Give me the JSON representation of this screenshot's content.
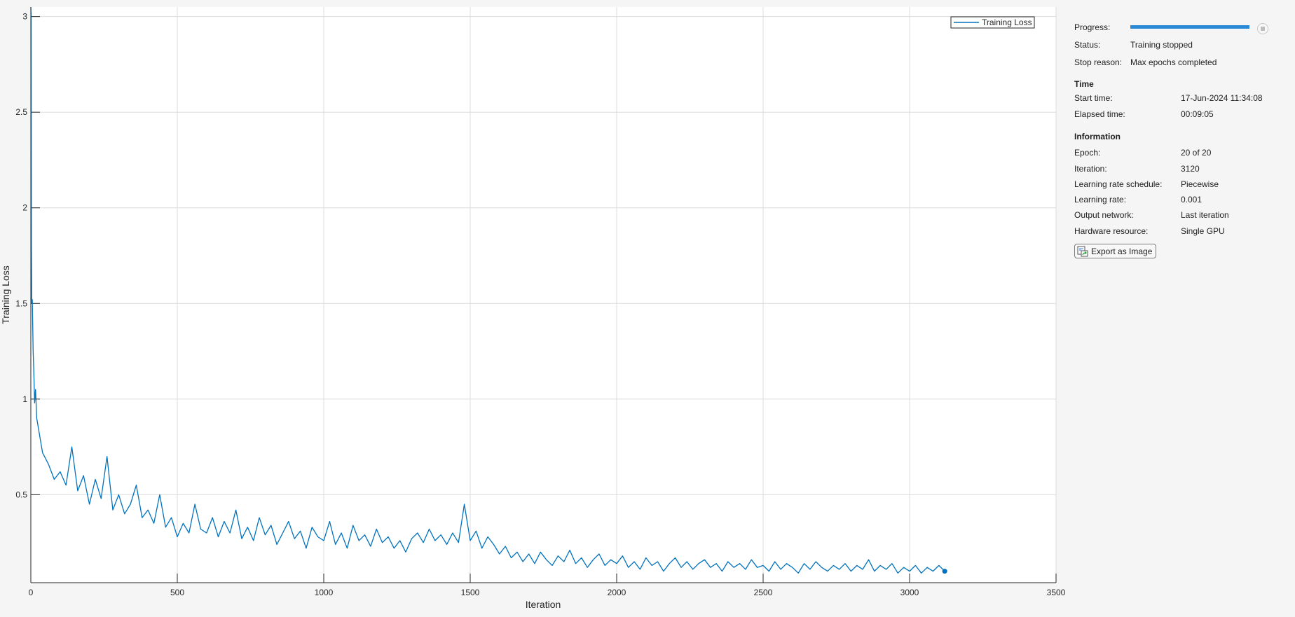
{
  "chart_data": {
    "type": "line",
    "xlabel": "Iteration",
    "ylabel": "Training Loss",
    "xlim": [
      0,
      3500
    ],
    "ylim": [
      0.04,
      3.05
    ],
    "xticks": [
      0,
      500,
      1000,
      1500,
      2000,
      2500,
      3000,
      3500
    ],
    "yticks": [
      0.5,
      1,
      1.5,
      2,
      2.5,
      3
    ],
    "ytick_labels": [
      "0.5",
      "1",
      "1.5",
      "2",
      "2.5",
      "3"
    ],
    "grid": true,
    "legend_placement": "top-right",
    "color": "#0072bd",
    "series": [
      {
        "name": "Training Loss",
        "points": [
          [
            0,
            3.05
          ],
          [
            1,
            3.0
          ],
          [
            2,
            1.8
          ],
          [
            3,
            1.5
          ],
          [
            5,
            1.52
          ],
          [
            8,
            1.25
          ],
          [
            10,
            1.15
          ],
          [
            13,
            0.98
          ],
          [
            16,
            1.05
          ],
          [
            20,
            0.9
          ],
          [
            40,
            0.72
          ],
          [
            60,
            0.66
          ],
          [
            80,
            0.58
          ],
          [
            100,
            0.62
          ],
          [
            120,
            0.55
          ],
          [
            140,
            0.75
          ],
          [
            160,
            0.52
          ],
          [
            180,
            0.6
          ],
          [
            200,
            0.45
          ],
          [
            220,
            0.58
          ],
          [
            240,
            0.48
          ],
          [
            260,
            0.7
          ],
          [
            280,
            0.42
          ],
          [
            300,
            0.5
          ],
          [
            320,
            0.4
          ],
          [
            340,
            0.45
          ],
          [
            360,
            0.55
          ],
          [
            380,
            0.38
          ],
          [
            400,
            0.42
          ],
          [
            420,
            0.35
          ],
          [
            440,
            0.5
          ],
          [
            460,
            0.33
          ],
          [
            480,
            0.38
          ],
          [
            500,
            0.28
          ],
          [
            520,
            0.35
          ],
          [
            540,
            0.3
          ],
          [
            560,
            0.45
          ],
          [
            580,
            0.32
          ],
          [
            600,
            0.3
          ],
          [
            620,
            0.38
          ],
          [
            640,
            0.28
          ],
          [
            660,
            0.36
          ],
          [
            680,
            0.3
          ],
          [
            700,
            0.42
          ],
          [
            720,
            0.27
          ],
          [
            740,
            0.33
          ],
          [
            760,
            0.26
          ],
          [
            780,
            0.38
          ],
          [
            800,
            0.29
          ],
          [
            820,
            0.34
          ],
          [
            840,
            0.24
          ],
          [
            860,
            0.3
          ],
          [
            880,
            0.36
          ],
          [
            900,
            0.27
          ],
          [
            920,
            0.31
          ],
          [
            940,
            0.22
          ],
          [
            960,
            0.33
          ],
          [
            980,
            0.28
          ],
          [
            1000,
            0.26
          ],
          [
            1020,
            0.36
          ],
          [
            1040,
            0.24
          ],
          [
            1060,
            0.3
          ],
          [
            1080,
            0.22
          ],
          [
            1100,
            0.34
          ],
          [
            1120,
            0.26
          ],
          [
            1140,
            0.29
          ],
          [
            1160,
            0.23
          ],
          [
            1180,
            0.32
          ],
          [
            1200,
            0.25
          ],
          [
            1220,
            0.28
          ],
          [
            1240,
            0.22
          ],
          [
            1260,
            0.26
          ],
          [
            1280,
            0.2
          ],
          [
            1300,
            0.27
          ],
          [
            1320,
            0.3
          ],
          [
            1340,
            0.25
          ],
          [
            1360,
            0.32
          ],
          [
            1380,
            0.26
          ],
          [
            1400,
            0.29
          ],
          [
            1420,
            0.24
          ],
          [
            1440,
            0.3
          ],
          [
            1460,
            0.25
          ],
          [
            1480,
            0.45
          ],
          [
            1500,
            0.26
          ],
          [
            1520,
            0.31
          ],
          [
            1540,
            0.22
          ],
          [
            1560,
            0.28
          ],
          [
            1580,
            0.24
          ],
          [
            1600,
            0.19
          ],
          [
            1620,
            0.23
          ],
          [
            1640,
            0.17
          ],
          [
            1660,
            0.2
          ],
          [
            1680,
            0.15
          ],
          [
            1700,
            0.19
          ],
          [
            1720,
            0.14
          ],
          [
            1740,
            0.2
          ],
          [
            1760,
            0.16
          ],
          [
            1780,
            0.13
          ],
          [
            1800,
            0.18
          ],
          [
            1820,
            0.15
          ],
          [
            1840,
            0.21
          ],
          [
            1860,
            0.14
          ],
          [
            1880,
            0.17
          ],
          [
            1900,
            0.12
          ],
          [
            1920,
            0.16
          ],
          [
            1940,
            0.19
          ],
          [
            1960,
            0.13
          ],
          [
            1980,
            0.16
          ],
          [
            2000,
            0.14
          ],
          [
            2020,
            0.18
          ],
          [
            2040,
            0.12
          ],
          [
            2060,
            0.15
          ],
          [
            2080,
            0.11
          ],
          [
            2100,
            0.17
          ],
          [
            2120,
            0.13
          ],
          [
            2140,
            0.15
          ],
          [
            2160,
            0.1
          ],
          [
            2180,
            0.14
          ],
          [
            2200,
            0.17
          ],
          [
            2220,
            0.12
          ],
          [
            2240,
            0.15
          ],
          [
            2260,
            0.11
          ],
          [
            2280,
            0.14
          ],
          [
            2300,
            0.16
          ],
          [
            2320,
            0.12
          ],
          [
            2340,
            0.14
          ],
          [
            2360,
            0.1
          ],
          [
            2380,
            0.15
          ],
          [
            2400,
            0.12
          ],
          [
            2420,
            0.14
          ],
          [
            2440,
            0.11
          ],
          [
            2460,
            0.16
          ],
          [
            2480,
            0.12
          ],
          [
            2500,
            0.13
          ],
          [
            2520,
            0.1
          ],
          [
            2540,
            0.15
          ],
          [
            2560,
            0.11
          ],
          [
            2580,
            0.14
          ],
          [
            2600,
            0.12
          ],
          [
            2620,
            0.09
          ],
          [
            2640,
            0.14
          ],
          [
            2660,
            0.11
          ],
          [
            2680,
            0.15
          ],
          [
            2700,
            0.12
          ],
          [
            2720,
            0.1
          ],
          [
            2740,
            0.13
          ],
          [
            2760,
            0.11
          ],
          [
            2780,
            0.14
          ],
          [
            2800,
            0.1
          ],
          [
            2820,
            0.13
          ],
          [
            2840,
            0.11
          ],
          [
            2860,
            0.16
          ],
          [
            2880,
            0.1
          ],
          [
            2900,
            0.13
          ],
          [
            2920,
            0.11
          ],
          [
            2940,
            0.14
          ],
          [
            2960,
            0.09
          ],
          [
            2980,
            0.12
          ],
          [
            3000,
            0.1
          ],
          [
            3020,
            0.13
          ],
          [
            3040,
            0.09
          ],
          [
            3060,
            0.12
          ],
          [
            3080,
            0.1
          ],
          [
            3100,
            0.13
          ],
          [
            3120,
            0.1
          ]
        ]
      }
    ]
  },
  "panel": {
    "progress_label": "Progress:",
    "progress_fraction": 1.0,
    "progress_color": "#2b8ad8",
    "status_label": "Status:",
    "status_value": "Training stopped",
    "stop_reason_label": "Stop reason:",
    "stop_reason_value": "Max epochs completed",
    "time_header": "Time",
    "start_time_label": "Start time:",
    "start_time_value": "17-Jun-2024 11:34:08",
    "elapsed_label": "Elapsed time:",
    "elapsed_value": "00:09:05",
    "info_header": "Information",
    "epoch_label": "Epoch:",
    "epoch_value": "20 of 20",
    "iteration_label": "Iteration:",
    "iteration_value": "3120",
    "lr_schedule_label": "Learning rate schedule:",
    "lr_schedule_value": "Piecewise",
    "lr_label": "Learning rate:",
    "lr_value": "0.001",
    "output_label": "Output network:",
    "output_value": "Last iteration",
    "hardware_label": "Hardware resource:",
    "hardware_value": "Single GPU",
    "export_label": "Export as Image",
    "stop_icon": "stop-circle-icon",
    "export_icon": "export-image-icon"
  }
}
